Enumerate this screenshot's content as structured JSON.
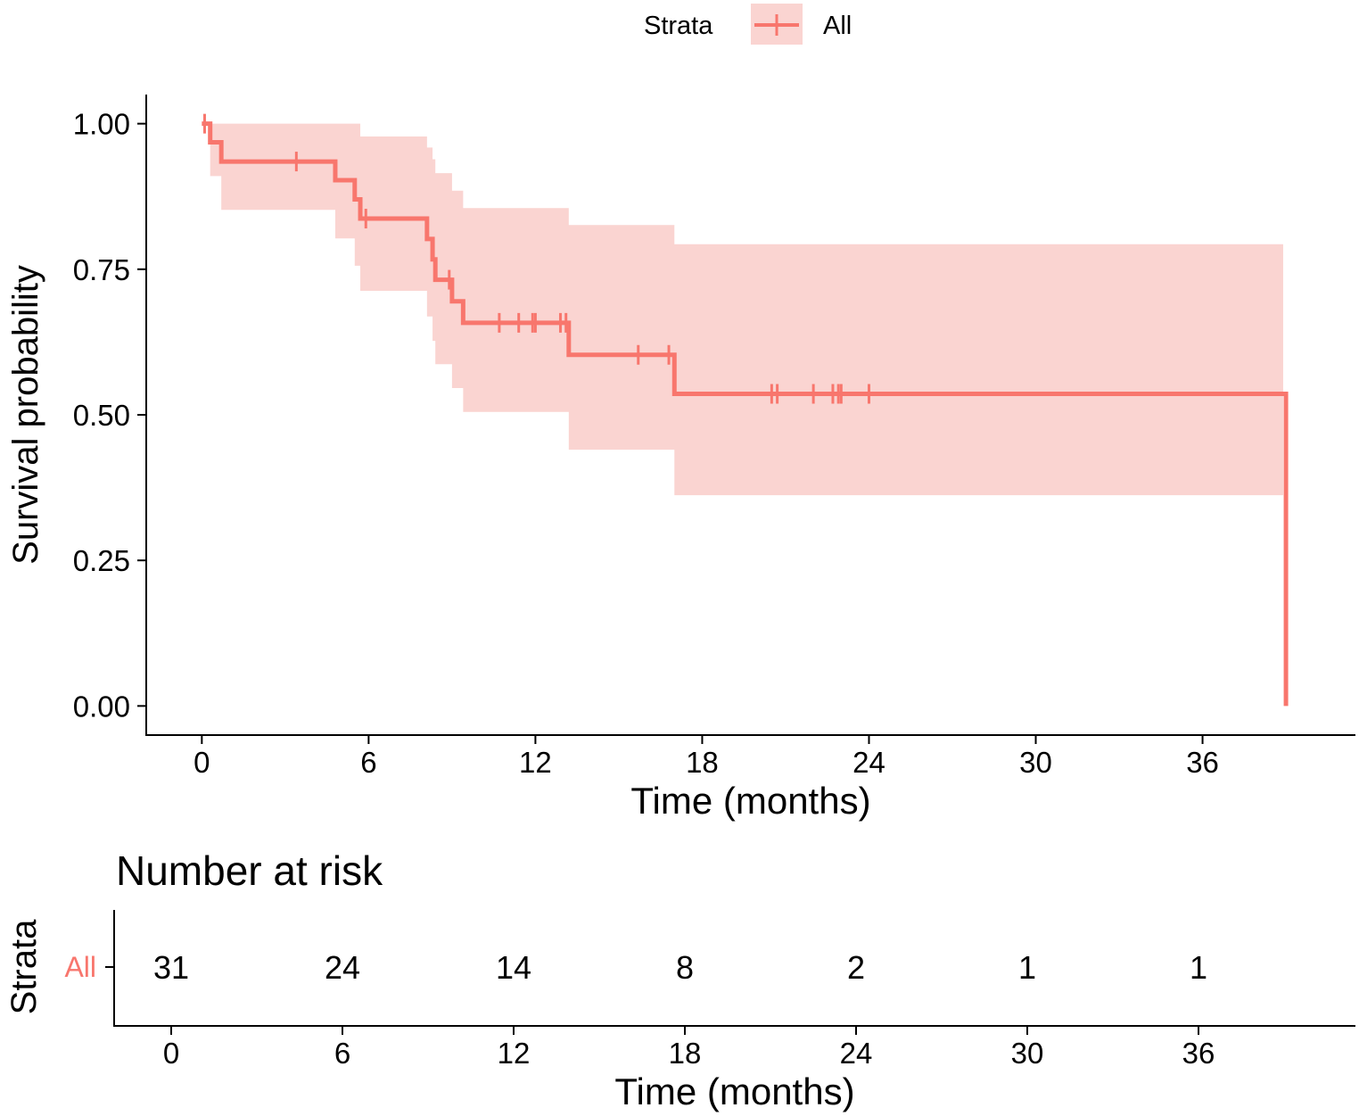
{
  "colors": {
    "stratum": "#F8766D",
    "band": "#FAD4D1",
    "axis": "#000000"
  },
  "chart_data": [
    {
      "type": "line",
      "subtype": "kaplan-meier",
      "xlabel": "Time (months)",
      "ylabel": "Survival probability",
      "xlim": [
        -2,
        41.5
      ],
      "ylim": [
        -0.05,
        1.05
      ],
      "x_ticks": [
        0,
        6,
        12,
        18,
        24,
        30,
        36
      ],
      "x_tick_labels": [
        "0",
        "6",
        "12",
        "18",
        "24",
        "30",
        "36"
      ],
      "y_ticks": [
        0,
        0.25,
        0.5,
        0.75,
        1
      ],
      "y_tick_labels": [
        "0.00",
        "0.25",
        "0.50",
        "0.75",
        "1.00"
      ],
      "legend": {
        "title": "Strata",
        "position": "top",
        "entries": [
          "All"
        ]
      },
      "series": [
        {
          "name": "All",
          "steps": [
            {
              "x": 0.0,
              "y": 1.0
            },
            {
              "x": 0.3,
              "y": 0.968
            },
            {
              "x": 0.7,
              "y": 0.935
            },
            {
              "x": 4.8,
              "y": 0.903
            },
            {
              "x": 5.5,
              "y": 0.87
            },
            {
              "x": 5.7,
              "y": 0.837
            },
            {
              "x": 8.1,
              "y": 0.802
            },
            {
              "x": 8.3,
              "y": 0.767
            },
            {
              "x": 8.4,
              "y": 0.732
            },
            {
              "x": 9.0,
              "y": 0.695
            },
            {
              "x": 9.4,
              "y": 0.658
            },
            {
              "x": 13.2,
              "y": 0.603
            },
            {
              "x": 17.0,
              "y": 0.536
            },
            {
              "x": 39.0,
              "y": 0.0
            }
          ],
          "end_x": 39.0,
          "ci": [
            {
              "x": 0.0,
              "lower": 1.0,
              "upper": 1.0
            },
            {
              "x": 0.3,
              "lower": 0.91,
              "upper": 1.0
            },
            {
              "x": 0.7,
              "lower": 0.852,
              "upper": 1.0
            },
            {
              "x": 4.8,
              "lower": 0.803,
              "upper": 1.0
            },
            {
              "x": 5.5,
              "lower": 0.756,
              "upper": 1.0
            },
            {
              "x": 5.7,
              "lower": 0.713,
              "upper": 0.978
            },
            {
              "x": 8.1,
              "lower": 0.669,
              "upper": 0.959
            },
            {
              "x": 8.3,
              "lower": 0.627,
              "upper": 0.939
            },
            {
              "x": 8.4,
              "lower": 0.587,
              "upper": 0.915
            },
            {
              "x": 9.0,
              "lower": 0.546,
              "upper": 0.885
            },
            {
              "x": 9.4,
              "lower": 0.505,
              "upper": 0.855
            },
            {
              "x": 13.2,
              "lower": 0.44,
              "upper": 0.826
            },
            {
              "x": 17.0,
              "lower": 0.362,
              "upper": 0.793
            }
          ],
          "ci_end_x": 38.9,
          "censor_times": [
            0.1,
            3.4,
            5.9,
            8.9,
            10.7,
            11.4,
            11.9,
            12.0,
            12.9,
            13.1,
            15.7,
            16.8,
            20.5,
            20.7,
            22.0,
            22.7,
            22.9,
            23.0,
            24.0
          ]
        }
      ]
    },
    {
      "type": "table",
      "title": "Number at risk",
      "ylabel": "Strata",
      "xlabel": "Time (months)",
      "xlim": [
        -2,
        41.5
      ],
      "x_ticks": [
        0,
        6,
        12,
        18,
        24,
        30,
        36
      ],
      "x_tick_labels": [
        "0",
        "6",
        "12",
        "18",
        "24",
        "30",
        "36"
      ],
      "rows": [
        {
          "label": "All",
          "values": [
            "31",
            "24",
            "14",
            "8",
            "2",
            "1",
            "1"
          ]
        }
      ]
    }
  ]
}
